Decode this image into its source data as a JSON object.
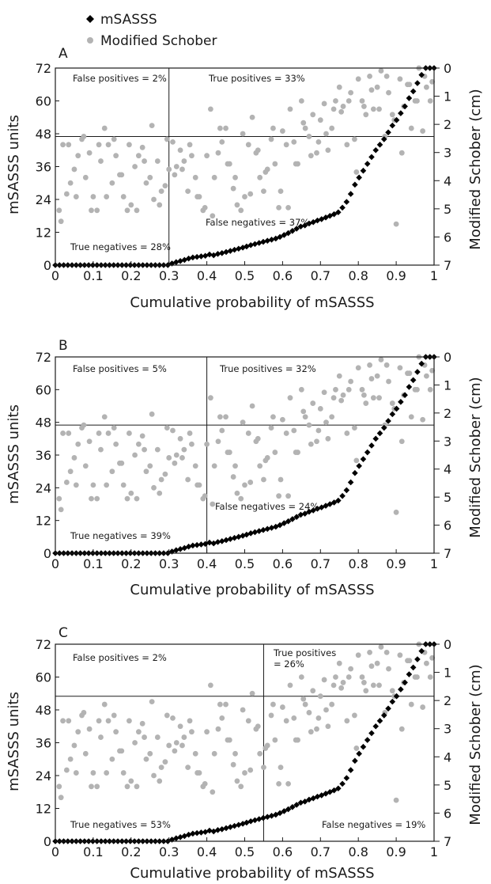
{
  "figure": {
    "legend": [
      {
        "label": "mSASSS",
        "marker": "diamond",
        "color": "#000000"
      },
      {
        "label": "Modified Schober",
        "marker": "circle",
        "color": "#b3b3b3"
      }
    ]
  },
  "chart_data": [
    {
      "type": "scatter",
      "panel_label": "A",
      "xlabel": "Cumulative probability of mSASSS",
      "ylabel": "mSASSS units",
      "y2label": "Modified Schober (cm)",
      "xlim": [
        0,
        1
      ],
      "ylim": [
        0,
        72
      ],
      "y2lim": [
        7,
        0
      ],
      "xticks": [
        "0",
        "0.1",
        "0.2",
        "0.3",
        "0.4",
        "0.5",
        "0.6",
        "0.7",
        "0.8",
        "0.9",
        "1"
      ],
      "yticks": [
        "0",
        "12",
        "24",
        "36",
        "48",
        "60",
        "72"
      ],
      "y2ticks": [
        "0",
        "1",
        "2",
        "3",
        "4",
        "5",
        "6",
        "7"
      ],
      "cutoff_x": 0.3,
      "cutoff_y": 47,
      "annotations": [
        {
          "text": "False positives = 2%"
        },
        {
          "text": "True positives = 33%"
        },
        {
          "text": "False negatives = 37%"
        },
        {
          "text": "True negatives = 28%"
        }
      ]
    },
    {
      "type": "scatter",
      "panel_label": "B",
      "xlabel": "Cumulative probability of mSASSS",
      "ylabel": "mSASSS units",
      "y2label": "Modified Schober (cm)",
      "xlim": [
        0,
        1
      ],
      "ylim": [
        0,
        72
      ],
      "y2lim": [
        7,
        0
      ],
      "xticks": [
        "0",
        "0.1",
        "0.2",
        "0.3",
        "0.4",
        "0.5",
        "0.6",
        "0.7",
        "0.8",
        "0.9",
        "1"
      ],
      "yticks": [
        "0",
        "12",
        "24",
        "36",
        "48",
        "60",
        "72"
      ],
      "y2ticks": [
        "0",
        "1",
        "2",
        "3",
        "4",
        "5",
        "6",
        "7"
      ],
      "cutoff_x": 0.4,
      "cutoff_y": 47,
      "annotations": [
        {
          "text": "False positives = 5%"
        },
        {
          "text": "True positives = 32%"
        },
        {
          "text": "False negatives = 24%"
        },
        {
          "text": "True negatives = 39%"
        }
      ]
    },
    {
      "type": "scatter",
      "panel_label": "C",
      "xlabel": "Cumulative probability of mSASSS",
      "ylabel": "mSASSS units",
      "y2label": "Modified Schober (cm)",
      "xlim": [
        0,
        1
      ],
      "ylim": [
        0,
        72
      ],
      "y2lim": [
        7,
        0
      ],
      "xticks": [
        "0",
        "0.1",
        "0.2",
        "0.3",
        "0.4",
        "0.5",
        "0.6",
        "0.7",
        "0.8",
        "0.9",
        "1"
      ],
      "yticks": [
        "0",
        "12",
        "24",
        "36",
        "48",
        "60",
        "72"
      ],
      "y2ticks": [
        "0",
        "1",
        "2",
        "3",
        "4",
        "5",
        "6",
        "7"
      ],
      "cutoff_x": 0.55,
      "cutoff_y": 53,
      "annotations": [
        {
          "text": "False positives = 2%"
        },
        {
          "text": "True positives\n= 26%"
        },
        {
          "text": "True negatives = 53%"
        },
        {
          "text": "False negatives = 19%"
        }
      ]
    }
  ],
  "series": {
    "msasss": {
      "name": "mSASSS",
      "x": [
        0.0,
        0.011,
        0.022,
        0.033,
        0.044,
        0.055,
        0.066,
        0.077,
        0.088,
        0.099,
        0.11,
        0.121,
        0.132,
        0.143,
        0.154,
        0.165,
        0.176,
        0.187,
        0.198,
        0.209,
        0.22,
        0.231,
        0.242,
        0.253,
        0.264,
        0.275,
        0.286,
        0.297,
        0.308,
        0.319,
        0.33,
        0.341,
        0.352,
        0.363,
        0.374,
        0.385,
        0.396,
        0.407,
        0.418,
        0.429,
        0.44,
        0.451,
        0.462,
        0.473,
        0.484,
        0.495,
        0.505,
        0.516,
        0.527,
        0.538,
        0.549,
        0.56,
        0.571,
        0.582,
        0.593,
        0.604,
        0.615,
        0.626,
        0.637,
        0.648,
        0.659,
        0.67,
        0.681,
        0.692,
        0.703,
        0.714,
        0.725,
        0.736,
        0.747,
        0.758,
        0.769,
        0.78,
        0.791,
        0.802,
        0.813,
        0.824,
        0.835,
        0.846,
        0.857,
        0.868,
        0.879,
        0.89,
        0.901,
        0.912,
        0.923,
        0.934,
        0.945,
        0.956,
        0.967,
        0.978,
        0.989,
        1.0
      ],
      "y": [
        0,
        0,
        0,
        0,
        0,
        0,
        0,
        0,
        0,
        0,
        0,
        0,
        0,
        0,
        0,
        0,
        0,
        0,
        0,
        0,
        0,
        0,
        0,
        0,
        0,
        0,
        0,
        0,
        0.6,
        1.1,
        1.5,
        1.9,
        2.4,
        2.8,
        3.0,
        3.2,
        3.4,
        3.9,
        3.6,
        4.1,
        4.4,
        4.8,
        5.2,
        5.6,
        6.0,
        6.4,
        6.8,
        7.3,
        7.7,
        8.1,
        8.5,
        8.9,
        9.3,
        9.7,
        10.3,
        11.0,
        11.7,
        12.5,
        13.3,
        14.1,
        14.5,
        15.2,
        15.7,
        16.3,
        16.8,
        17.4,
        18.0,
        18.6,
        19.3,
        21.0,
        23.1,
        26.0,
        29.4,
        32.0,
        34.5,
        37.0,
        39.5,
        42.0,
        44.0,
        46.0,
        48.5,
        51.0,
        53.0,
        55.5,
        58.0,
        61.0,
        63.5,
        66.5,
        69.5,
        72.0,
        72.0,
        72.0
      ]
    },
    "schober": {
      "name": "Modified Schober",
      "x": [
        0.01,
        0.02,
        0.03,
        0.04,
        0.05,
        0.06,
        0.07,
        0.08,
        0.09,
        0.1,
        0.11,
        0.12,
        0.13,
        0.14,
        0.15,
        0.16,
        0.17,
        0.18,
        0.19,
        0.2,
        0.21,
        0.22,
        0.23,
        0.24,
        0.25,
        0.26,
        0.27,
        0.28,
        0.29,
        0.3,
        0.31,
        0.32,
        0.33,
        0.34,
        0.35,
        0.36,
        0.37,
        0.38,
        0.39,
        0.4,
        0.41,
        0.42,
        0.43,
        0.44,
        0.45,
        0.46,
        0.47,
        0.48,
        0.49,
        0.5,
        0.51,
        0.52,
        0.53,
        0.54,
        0.55,
        0.56,
        0.57,
        0.58,
        0.59,
        0.6,
        0.61,
        0.62,
        0.63,
        0.64,
        0.65,
        0.66,
        0.67,
        0.68,
        0.69,
        0.7,
        0.71,
        0.72,
        0.73,
        0.74,
        0.75,
        0.76,
        0.77,
        0.78,
        0.79,
        0.8,
        0.81,
        0.82,
        0.83,
        0.84,
        0.85,
        0.86,
        0.87,
        0.88,
        0.89,
        0.9,
        0.91,
        0.92,
        0.93,
        0.94,
        0.95,
        0.96,
        0.97,
        0.98,
        0.99,
        0.015,
        0.035,
        0.055,
        0.075,
        0.095,
        0.115,
        0.135,
        0.155,
        0.175,
        0.195,
        0.215,
        0.235,
        0.255,
        0.275,
        0.295,
        0.315,
        0.335,
        0.355,
        0.375,
        0.395,
        0.415,
        0.435,
        0.455,
        0.475,
        0.495,
        0.515,
        0.535,
        0.555,
        0.575,
        0.595,
        0.615,
        0.635,
        0.655,
        0.675,
        0.695,
        0.715,
        0.735,
        0.755,
        0.775,
        0.795,
        0.815,
        0.835,
        0.855,
        0.875,
        0.895,
        0.915,
        0.935,
        0.955,
        0.975,
        0.995
      ],
      "y": [
        20,
        44,
        26,
        30,
        35,
        40,
        46,
        32,
        41,
        25,
        20,
        38,
        50,
        44,
        30,
        40,
        33,
        25,
        20,
        22,
        36,
        40,
        43,
        30,
        32,
        24,
        38,
        27,
        29,
        35,
        45,
        36,
        42,
        38,
        27,
        40,
        32,
        25,
        20,
        40,
        57,
        32,
        41,
        45,
        50,
        37,
        28,
        22,
        20,
        25,
        44,
        54,
        41,
        32,
        27,
        35,
        46,
        37,
        21,
        49,
        44,
        57,
        45,
        37,
        60,
        50,
        47,
        55,
        41,
        53,
        59,
        42,
        50,
        60,
        65,
        58,
        44,
        63,
        46,
        68,
        60,
        55,
        69,
        57,
        65,
        71,
        47,
        63,
        55,
        15,
        68,
        58,
        66,
        50,
        60,
        72,
        49,
        65,
        60,
        16,
        44,
        25,
        47,
        20,
        44,
        25,
        46,
        33,
        44,
        20,
        38,
        51,
        22,
        46,
        33,
        35,
        44,
        25,
        21,
        18,
        50,
        37,
        32,
        48,
        26,
        42,
        34,
        50,
        27,
        21,
        37,
        52,
        40,
        45,
        48,
        57,
        56,
        60,
        34,
        58,
        64,
        57,
        69,
        53,
        41,
        66,
        60,
        69,
        67
      ]
    }
  }
}
